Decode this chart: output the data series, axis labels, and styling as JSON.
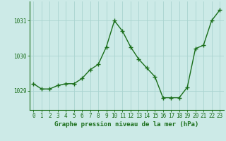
{
  "x": [
    0,
    1,
    2,
    3,
    4,
    5,
    6,
    7,
    8,
    9,
    10,
    11,
    12,
    13,
    14,
    15,
    16,
    17,
    18,
    19,
    20,
    21,
    22,
    23
  ],
  "y": [
    1029.2,
    1029.05,
    1029.05,
    1029.15,
    1029.2,
    1029.2,
    1029.35,
    1029.6,
    1029.75,
    1030.25,
    1031.0,
    1030.7,
    1030.25,
    1029.9,
    1029.65,
    1029.4,
    1028.8,
    1028.8,
    1028.8,
    1029.1,
    1030.2,
    1030.3,
    1031.0,
    1031.3
  ],
  "line_color": "#1a6e1a",
  "marker": "+",
  "marker_size": 4,
  "linewidth": 1.0,
  "bg_color": "#cceae7",
  "grid_color": "#aad4d0",
  "xlabel": "Graphe pression niveau de la mer (hPa)",
  "xlabel_fontsize": 6.5,
  "ylabel_labels": [
    "1029",
    "1030",
    "1031"
  ],
  "ylabel_values": [
    1029,
    1030,
    1031
  ],
  "xlim": [
    -0.5,
    23.5
  ],
  "ylim": [
    1028.45,
    1031.55
  ],
  "xtick_labels": [
    "0",
    "1",
    "2",
    "3",
    "4",
    "5",
    "6",
    "7",
    "8",
    "9",
    "10",
    "11",
    "12",
    "13",
    "14",
    "15",
    "16",
    "17",
    "18",
    "19",
    "20",
    "21",
    "22",
    "23"
  ],
  "tick_fontsize": 5.5,
  "axis_color": "#1a6e1a"
}
